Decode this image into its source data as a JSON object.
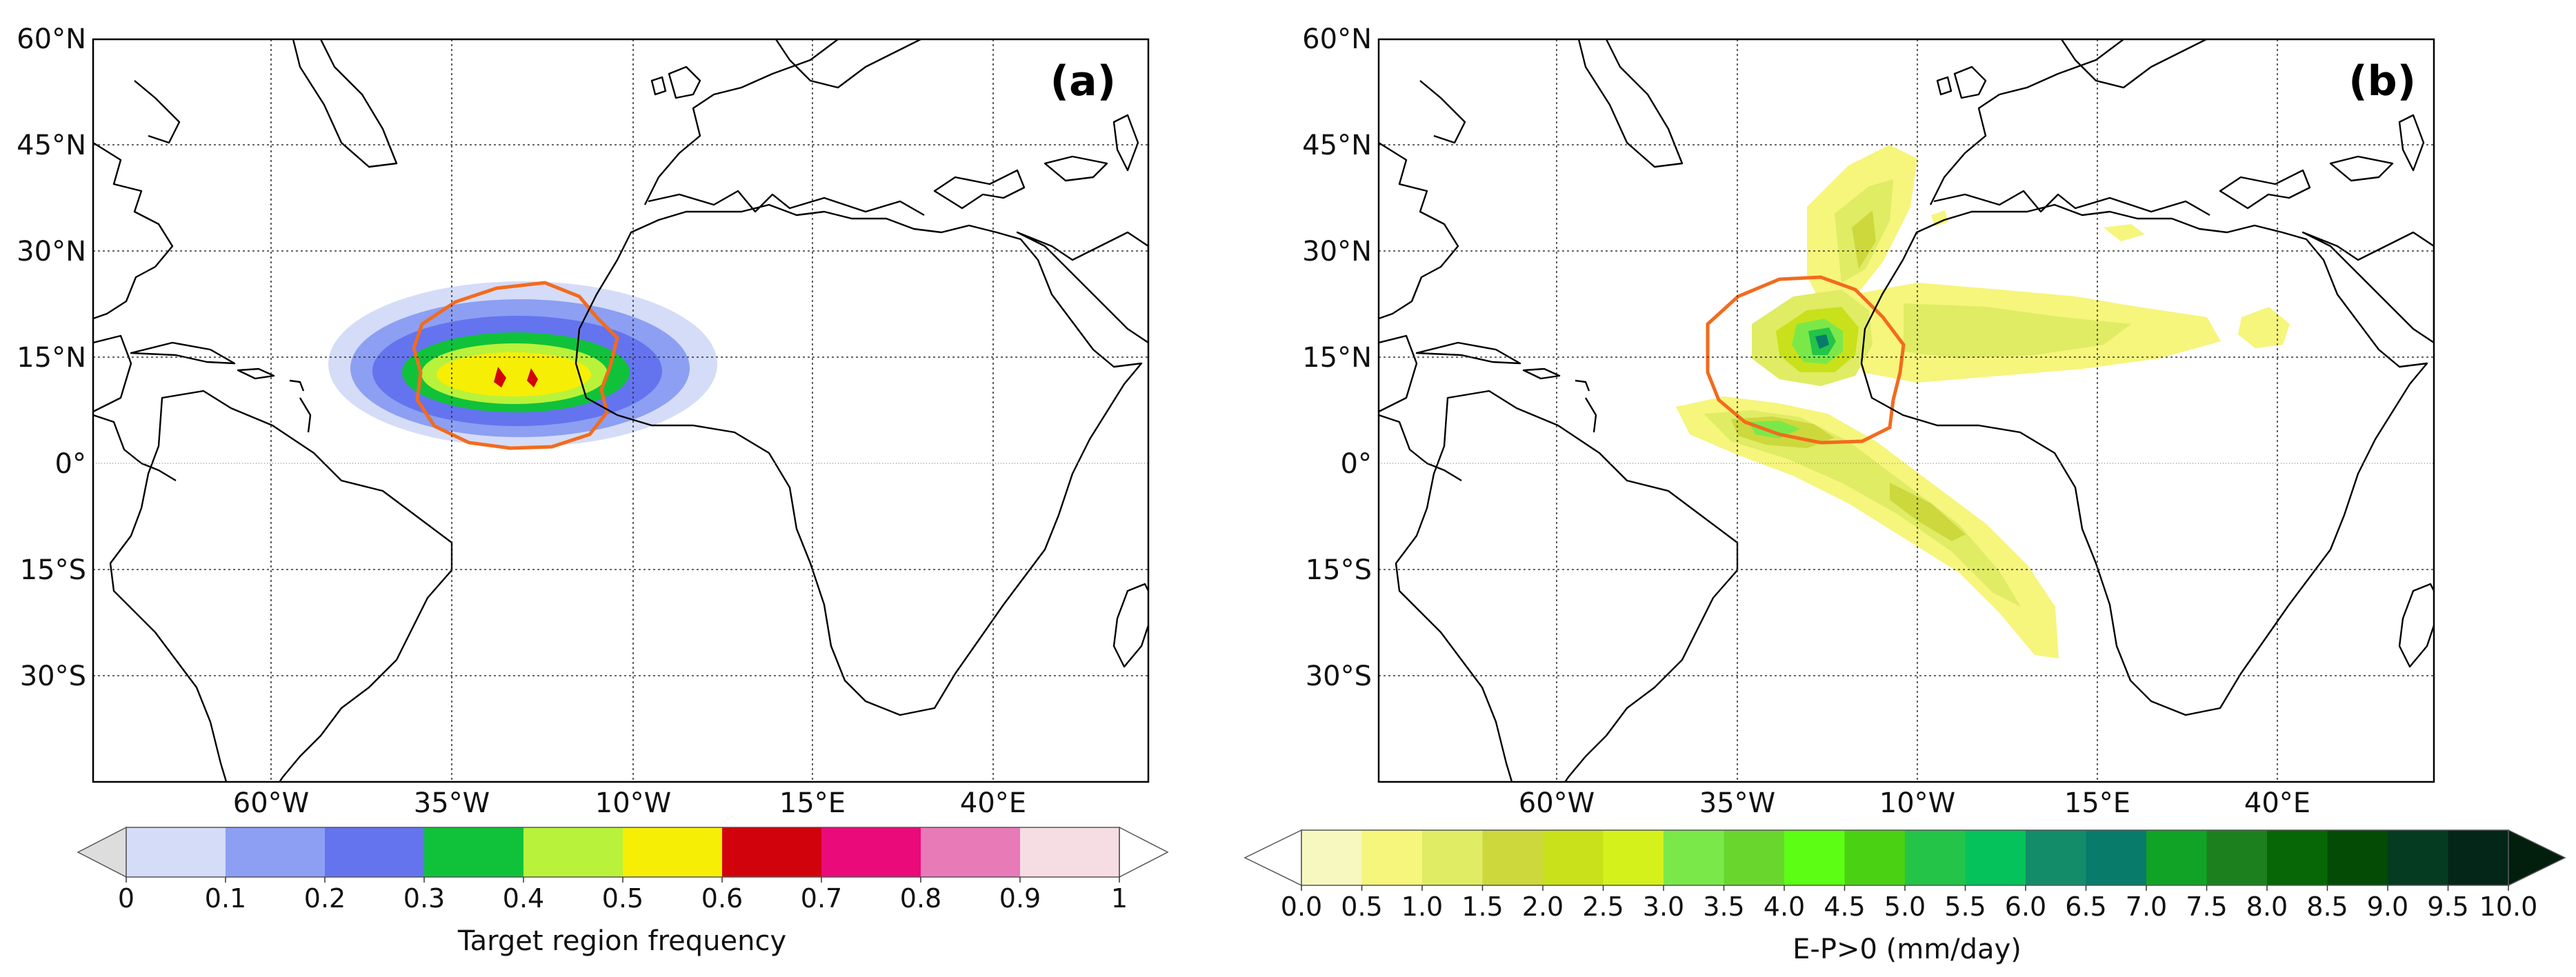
{
  "maps": [
    {
      "panel_label": "(a)",
      "lat_labels": [
        "60°N",
        "45°N",
        "30°N",
        "15°N",
        "0°",
        "15°S",
        "30°S"
      ],
      "lon_labels": [
        "60°W",
        "35°W",
        "10°W",
        "15°E",
        "40°E"
      ],
      "contour_color": "#f26b1d",
      "colorbar": {
        "title": "Target region frequency",
        "tick_labels": [
          "0",
          "0.1",
          "0.2",
          "0.3",
          "0.4",
          "0.5",
          "0.6",
          "0.7",
          "0.8",
          "0.9",
          "1"
        ],
        "colors": [
          "#d4dcf8",
          "#8c9ff2",
          "#6474ee",
          "#10c23a",
          "#b9f23a",
          "#f6ee05",
          "#d2020c",
          "#ea0a7a",
          "#e97ab8",
          "#f6dde3"
        ],
        "under_color": "#dddddd",
        "over_color": "#ffffff"
      }
    },
    {
      "panel_label": "(b)",
      "lat_labels": [
        "60°N",
        "45°N",
        "30°N",
        "15°N",
        "0°",
        "15°S",
        "30°S"
      ],
      "lon_labels": [
        "60°W",
        "35°W",
        "10°W",
        "15°E",
        "40°E"
      ],
      "contour_color": "#f26b1d",
      "colorbar": {
        "title": "E-P>0 (mm/day)",
        "tick_labels": [
          "0.0",
          "0.5",
          "1.0",
          "1.5",
          "2.0",
          "2.5",
          "3.0",
          "3.5",
          "4.0",
          "4.5",
          "5.0",
          "5.5",
          "6.0",
          "6.5",
          "7.0",
          "7.5",
          "8.0",
          "8.5",
          "9.0",
          "9.5",
          "10.0"
        ],
        "colors": [
          "#f7f7c0",
          "#f6f57c",
          "#dfec64",
          "#cdd83c",
          "#c8e11a",
          "#d4f11c",
          "#7be84a",
          "#69d62e",
          "#5cff14",
          "#4ad114",
          "#23c447",
          "#06c25a",
          "#138c69",
          "#087b6a",
          "#10a325",
          "#1d801f",
          "#076606",
          "#044c06",
          "#053b21",
          "#032618"
        ],
        "under_color": "#ffffff",
        "over_color": "#021f0e"
      }
    }
  ]
}
